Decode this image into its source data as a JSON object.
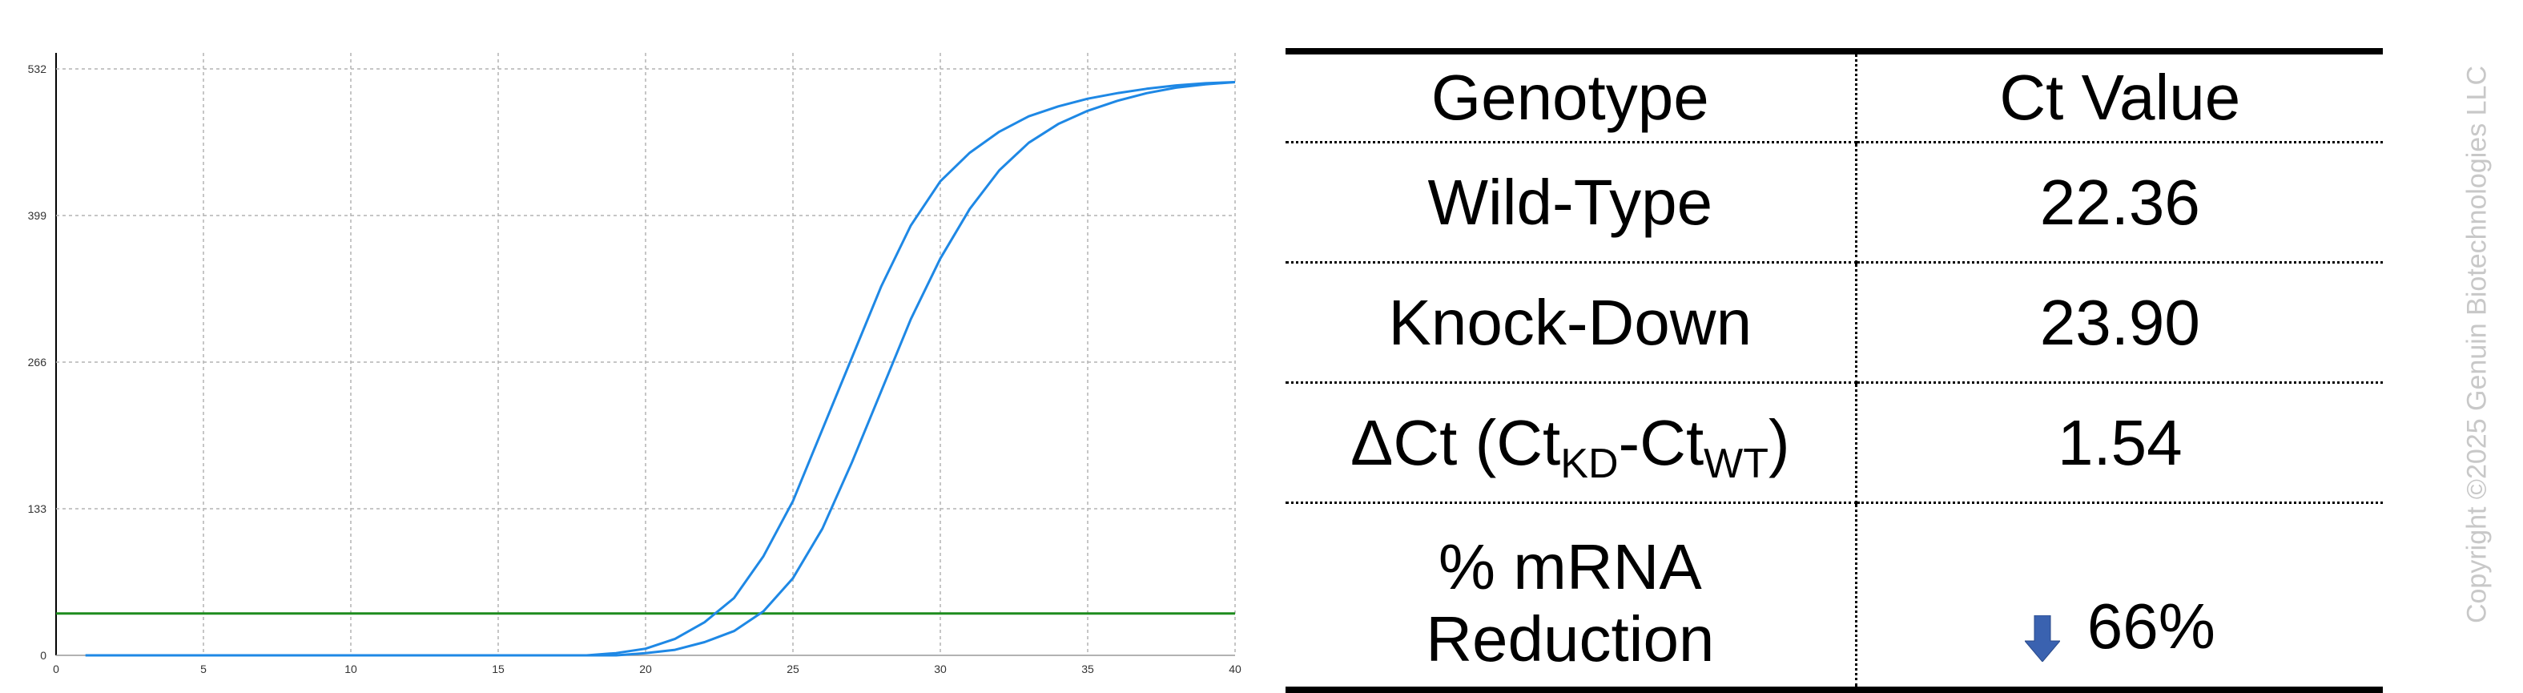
{
  "chart_data": {
    "type": "line",
    "xlim": [
      0,
      40
    ],
    "ylim": [
      0,
      532
    ],
    "x_ticks": [
      0,
      5,
      10,
      15,
      20,
      25,
      30,
      35,
      40
    ],
    "y_ticks": [
      0,
      133,
      266,
      399,
      532
    ],
    "grid": true,
    "series": [
      {
        "color": "#1E88E5",
        "x": [
          1,
          18,
          19,
          20,
          21,
          22,
          23,
          24,
          25,
          26,
          27,
          28,
          29,
          30,
          31,
          32,
          33,
          34,
          35,
          36,
          37,
          38,
          39,
          40
        ],
        "y": [
          0,
          0,
          2,
          6,
          15,
          30,
          52,
          90,
          140,
          205,
          270,
          335,
          390,
          430,
          456,
          475,
          489,
          498,
          505,
          510,
          514,
          517,
          519,
          520
        ]
      },
      {
        "color": "#1E88E5",
        "x": [
          1,
          18,
          19,
          20,
          21,
          22,
          23,
          24,
          25,
          26,
          27,
          28,
          29,
          30,
          31,
          32,
          33,
          34,
          35,
          36,
          37,
          38,
          39,
          40
        ],
        "y": [
          0,
          0,
          0,
          2,
          5,
          12,
          22,
          40,
          70,
          115,
          175,
          240,
          305,
          360,
          405,
          440,
          465,
          482,
          494,
          503,
          510,
          515,
          518,
          520
        ]
      }
    ],
    "threshold": {
      "y": 38,
      "color": "#1E8C1E"
    }
  },
  "table": {
    "header": {
      "genotype": "Genotype",
      "ct_value": "Ct Value"
    },
    "rows": [
      {
        "genotype": "Wild-Type",
        "value": "22.36"
      },
      {
        "genotype": "Knock-Down",
        "value": "23.90"
      }
    ],
    "delta": {
      "prefix": "ΔCt (Ct",
      "sub_kd": "KD",
      "middle": "-Ct",
      "sub_wt": "WT",
      "suffix": ")",
      "value": "1.54"
    },
    "reduction": {
      "line1": "% mRNA",
      "line2": "Reduction",
      "value": "66%"
    },
    "arrow_color": "#3A62B0"
  },
  "copyright": "Copyright ©2025 Genuin Biotechnologies LLC"
}
